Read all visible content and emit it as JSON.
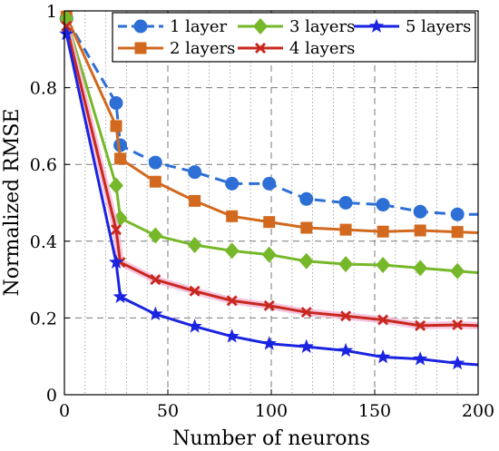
{
  "chart_data": {
    "type": "line",
    "xlabel": "Number of neurons",
    "ylabel": "Normalized RMSE",
    "xlim": [
      0,
      200
    ],
    "ylim": [
      0,
      1
    ],
    "grid": true,
    "legend_position": "top-right",
    "xticks": [
      0,
      50,
      100,
      150,
      200
    ],
    "yticks": [
      0,
      0.2,
      0.4,
      0.6,
      0.8,
      1
    ],
    "xtick_labels": [
      "0",
      "50",
      "100",
      "150",
      "200"
    ],
    "ytick_labels": [
      "0",
      "0.2",
      "0.4",
      "0.6",
      "0.8",
      "1"
    ],
    "series": [
      {
        "name": "1 layer",
        "color": "#2e6fd6",
        "dash": "dashed",
        "marker": "circle",
        "x": [
          1,
          25,
          27,
          44,
          63,
          81,
          99,
          117,
          136,
          154,
          172,
          190,
          200
        ],
        "y": [
          0.98,
          0.76,
          0.65,
          0.605,
          0.58,
          0.55,
          0.55,
          0.51,
          0.5,
          0.495,
          0.477,
          0.47,
          0.47
        ]
      },
      {
        "name": "2 layers",
        "color": "#d2691e",
        "dash": "solid",
        "marker": "square",
        "x": [
          1,
          25,
          27,
          44,
          63,
          81,
          99,
          117,
          136,
          154,
          172,
          190,
          200
        ],
        "y": [
          0.985,
          0.7,
          0.615,
          0.555,
          0.505,
          0.465,
          0.45,
          0.435,
          0.43,
          0.425,
          0.428,
          0.424,
          0.422
        ]
      },
      {
        "name": "3 layers",
        "color": "#76b82a",
        "dash": "solid",
        "marker": "diamond",
        "x": [
          1,
          25,
          27,
          44,
          63,
          81,
          99,
          117,
          136,
          154,
          172,
          190,
          200
        ],
        "y": [
          0.98,
          0.545,
          0.46,
          0.415,
          0.39,
          0.375,
          0.365,
          0.348,
          0.34,
          0.338,
          0.33,
          0.322,
          0.318
        ]
      },
      {
        "name": "4 layers",
        "color": "#c8281e",
        "dash": "solid",
        "marker": "x",
        "x": [
          1,
          25,
          27,
          44,
          63,
          81,
          99,
          117,
          136,
          154,
          172,
          190,
          200
        ],
        "y": [
          0.96,
          0.43,
          0.345,
          0.3,
          0.27,
          0.245,
          0.232,
          0.215,
          0.205,
          0.195,
          0.18,
          0.182,
          0.18
        ]
      },
      {
        "name": "5 layers",
        "color": "#1a24e0",
        "dash": "solid",
        "marker": "star",
        "x": [
          1,
          25,
          27,
          44,
          63,
          81,
          99,
          117,
          136,
          154,
          172,
          190,
          200
        ],
        "y": [
          0.94,
          0.345,
          0.255,
          0.21,
          0.178,
          0.152,
          0.133,
          0.125,
          0.115,
          0.098,
          0.093,
          0.082,
          0.078
        ]
      }
    ]
  }
}
